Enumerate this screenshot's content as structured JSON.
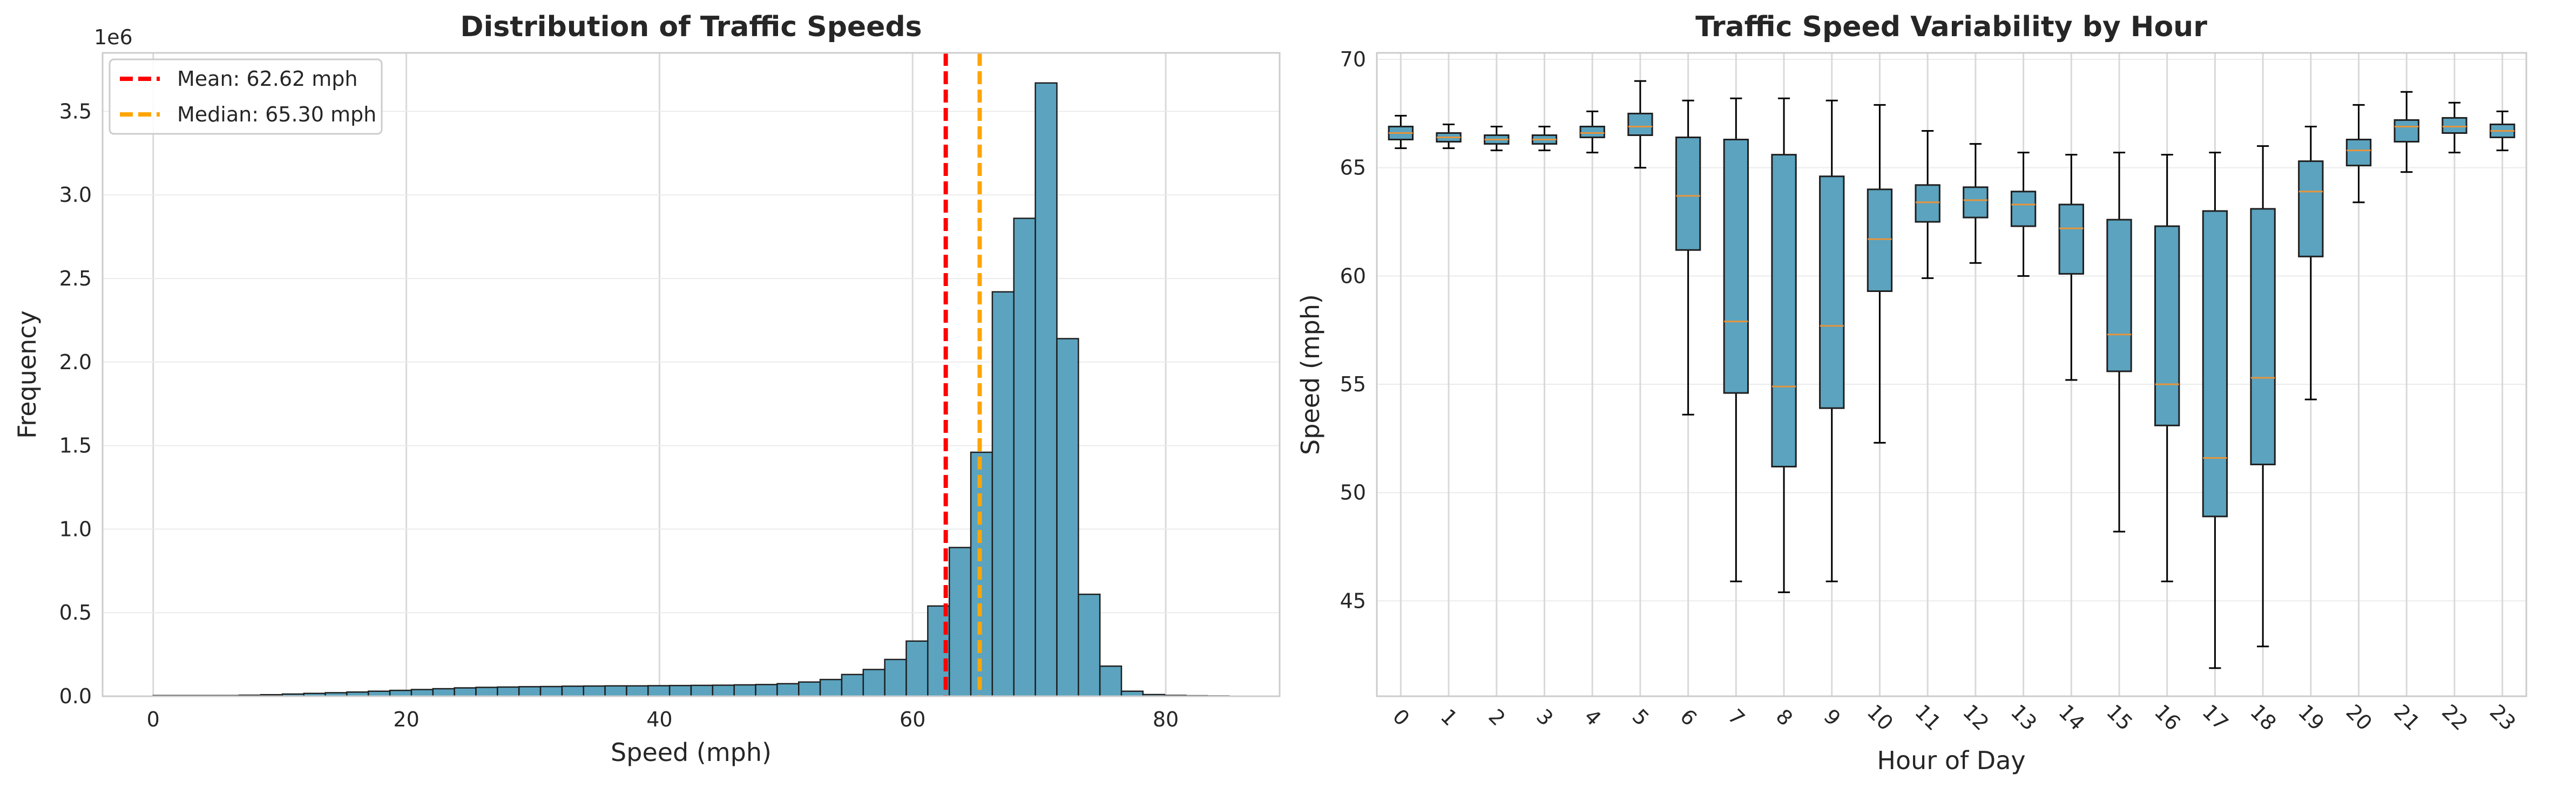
{
  "chart_data": [
    {
      "type": "bar",
      "title": "Distribution of Traffic Speeds",
      "xlabel": "Speed (mph)",
      "ylabel": "Frequency",
      "y_multiplier": "1e6",
      "xlim": [
        -4,
        89
      ],
      "ylim": [
        0,
        3.85
      ],
      "xticks": [
        0,
        20,
        40,
        60,
        80
      ],
      "yticks": [
        0.0,
        0.5,
        1.0,
        1.5,
        2.0,
        2.5,
        3.0,
        3.5
      ],
      "grid": true,
      "legend_position": "top-left",
      "bin_width": 1.7,
      "bins_start": 0,
      "values": [
        0.004,
        0.004,
        0.004,
        0.004,
        0.006,
        0.009,
        0.013,
        0.017,
        0.021,
        0.025,
        0.03,
        0.035,
        0.04,
        0.045,
        0.05,
        0.053,
        0.055,
        0.057,
        0.058,
        0.06,
        0.061,
        0.062,
        0.062,
        0.063,
        0.064,
        0.065,
        0.066,
        0.068,
        0.07,
        0.075,
        0.085,
        0.1,
        0.13,
        0.16,
        0.22,
        0.33,
        0.54,
        0.89,
        1.46,
        2.42,
        2.86,
        3.67,
        2.14,
        0.61,
        0.18,
        0.03,
        0.01,
        0.005,
        0.003,
        0.002
      ],
      "bar_color": "#5ba3bf",
      "reference_lines": [
        {
          "label": "Mean: 62.62 mph",
          "value": 62.62,
          "color": "#ff0000"
        },
        {
          "label": "Median: 65.30 mph",
          "value": 65.3,
          "color": "#ffa500"
        }
      ]
    },
    {
      "type": "box",
      "title": "Traffic Speed Variability by Hour",
      "xlabel": "Hour of Day",
      "ylabel": "Speed (mph)",
      "ylim": [
        40.6,
        70.3
      ],
      "yticks": [
        45,
        50,
        55,
        60,
        65,
        70
      ],
      "grid": true,
      "box_color": "#5ba3bf",
      "median_color": "#e8943a",
      "categories": [
        "0",
        "1",
        "2",
        "3",
        "4",
        "5",
        "6",
        "7",
        "8",
        "9",
        "10",
        "11",
        "12",
        "13",
        "14",
        "15",
        "16",
        "17",
        "18",
        "19",
        "20",
        "21",
        "22",
        "23"
      ],
      "boxes": [
        {
          "whislo": 65.9,
          "q1": 66.3,
          "med": 66.6,
          "q3": 66.9,
          "whishi": 67.4
        },
        {
          "whislo": 65.9,
          "q1": 66.2,
          "med": 66.4,
          "q3": 66.6,
          "whishi": 67.0
        },
        {
          "whislo": 65.8,
          "q1": 66.1,
          "med": 66.3,
          "q3": 66.5,
          "whishi": 66.9
        },
        {
          "whislo": 65.8,
          "q1": 66.1,
          "med": 66.3,
          "q3": 66.5,
          "whishi": 66.9
        },
        {
          "whislo": 65.7,
          "q1": 66.4,
          "med": 66.6,
          "q3": 66.9,
          "whishi": 67.6
        },
        {
          "whislo": 65.0,
          "q1": 66.5,
          "med": 66.9,
          "q3": 67.5,
          "whishi": 69.0
        },
        {
          "whislo": 53.6,
          "q1": 61.2,
          "med": 63.7,
          "q3": 66.4,
          "whishi": 68.1
        },
        {
          "whislo": 45.9,
          "q1": 54.6,
          "med": 57.9,
          "q3": 66.3,
          "whishi": 68.2
        },
        {
          "whislo": 45.4,
          "q1": 51.2,
          "med": 54.9,
          "q3": 65.6,
          "whishi": 68.2
        },
        {
          "whislo": 45.9,
          "q1": 53.9,
          "med": 57.7,
          "q3": 64.6,
          "whishi": 68.1
        },
        {
          "whislo": 52.3,
          "q1": 59.3,
          "med": 61.7,
          "q3": 64.0,
          "whishi": 67.9
        },
        {
          "whislo": 59.9,
          "q1": 62.5,
          "med": 63.4,
          "q3": 64.2,
          "whishi": 66.7
        },
        {
          "whislo": 60.6,
          "q1": 62.7,
          "med": 63.5,
          "q3": 64.1,
          "whishi": 66.1
        },
        {
          "whislo": 60.0,
          "q1": 62.3,
          "med": 63.3,
          "q3": 63.9,
          "whishi": 65.7
        },
        {
          "whislo": 55.2,
          "q1": 60.1,
          "med": 62.2,
          "q3": 63.3,
          "whishi": 65.6
        },
        {
          "whislo": 48.2,
          "q1": 55.6,
          "med": 57.3,
          "q3": 62.6,
          "whishi": 65.7
        },
        {
          "whislo": 45.9,
          "q1": 53.1,
          "med": 55.0,
          "q3": 62.3,
          "whishi": 65.6
        },
        {
          "whislo": 41.9,
          "q1": 48.9,
          "med": 51.6,
          "q3": 63.0,
          "whishi": 65.7
        },
        {
          "whislo": 42.9,
          "q1": 51.3,
          "med": 55.3,
          "q3": 63.1,
          "whishi": 66.0
        },
        {
          "whislo": 54.3,
          "q1": 60.9,
          "med": 63.9,
          "q3": 65.3,
          "whishi": 66.9
        },
        {
          "whislo": 63.4,
          "q1": 65.1,
          "med": 65.8,
          "q3": 66.3,
          "whishi": 67.9
        },
        {
          "whislo": 64.8,
          "q1": 66.2,
          "med": 66.9,
          "q3": 67.2,
          "whishi": 68.5
        },
        {
          "whislo": 65.7,
          "q1": 66.6,
          "med": 66.9,
          "q3": 67.3,
          "whishi": 68.0
        },
        {
          "whislo": 65.8,
          "q1": 66.4,
          "med": 66.7,
          "q3": 67.0,
          "whishi": 67.6
        }
      ]
    }
  ]
}
